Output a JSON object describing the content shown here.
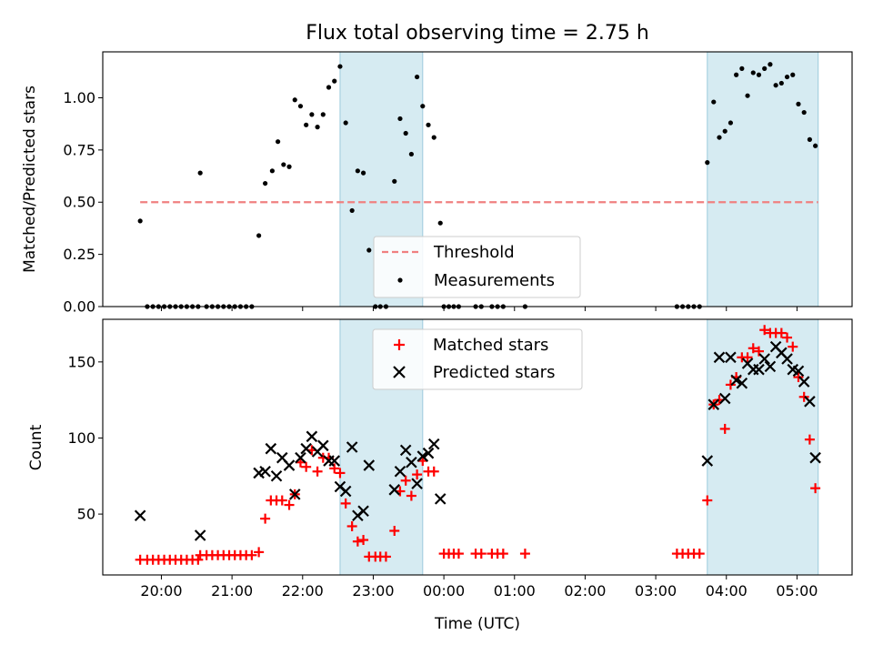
{
  "chart_data": [
    {
      "type": "scatter",
      "title": "Flux total observing time = 2.75 h",
      "xlabel": "",
      "ylabel": "Matched/Predicted stars",
      "x_unit": "hours since 00:00 UTC",
      "xlim": [
        -4.83,
        5.78
      ],
      "ylim": [
        0.0,
        1.22
      ],
      "yticks": [
        0.0,
        0.25,
        0.5,
        0.75,
        1.0
      ],
      "ytick_labels": [
        "0.00",
        "0.25",
        "0.50",
        "0.75",
        "1.00"
      ],
      "shaded_intervals": [
        [
          -1.47,
          -0.3
        ],
        [
          3.73,
          5.3
        ]
      ],
      "legend": {
        "placement": "bottom-center",
        "entries": [
          "Threshold",
          "Measurements"
        ]
      },
      "series": [
        {
          "name": "Threshold",
          "kind": "dashed-line",
          "color": "#f08080",
          "x": [
            -4.3,
            5.3
          ],
          "y": [
            0.5,
            0.5
          ]
        },
        {
          "name": "Measurements",
          "kind": "points",
          "color": "#000000",
          "points": [
            [
              -4.3,
              0.41
            ],
            [
              -4.2,
              0.0
            ],
            [
              -4.12,
              0.0
            ],
            [
              -4.04,
              0.0
            ],
            [
              -3.96,
              0.0
            ],
            [
              -3.88,
              0.0
            ],
            [
              -3.8,
              0.0
            ],
            [
              -3.72,
              0.0
            ],
            [
              -3.64,
              0.0
            ],
            [
              -3.56,
              0.0
            ],
            [
              -3.48,
              0.0
            ],
            [
              -3.45,
              0.64
            ],
            [
              -3.36,
              0.0
            ],
            [
              -3.28,
              0.0
            ],
            [
              -3.2,
              0.0
            ],
            [
              -3.12,
              0.0
            ],
            [
              -3.04,
              0.0
            ],
            [
              -2.96,
              0.0
            ],
            [
              -2.88,
              0.0
            ],
            [
              -2.8,
              0.0
            ],
            [
              -2.72,
              0.0
            ],
            [
              -2.62,
              0.34
            ],
            [
              -2.53,
              0.59
            ],
            [
              -2.43,
              0.65
            ],
            [
              -2.35,
              0.79
            ],
            [
              -2.27,
              0.68
            ],
            [
              -2.19,
              0.67
            ],
            [
              -2.11,
              0.99
            ],
            [
              -2.03,
              0.96
            ],
            [
              -1.95,
              0.87
            ],
            [
              -1.87,
              0.92
            ],
            [
              -1.79,
              0.86
            ],
            [
              -1.71,
              0.92
            ],
            [
              -1.63,
              1.05
            ],
            [
              -1.55,
              1.08
            ],
            [
              -1.47,
              1.15
            ],
            [
              -1.39,
              0.88
            ],
            [
              -1.3,
              0.46
            ],
            [
              -1.22,
              0.65
            ],
            [
              -1.14,
              0.64
            ],
            [
              -1.06,
              0.27
            ],
            [
              -0.97,
              0.0
            ],
            [
              -0.9,
              0.0
            ],
            [
              -0.82,
              0.0
            ],
            [
              -0.7,
              0.6
            ],
            [
              -0.62,
              0.9
            ],
            [
              -0.54,
              0.83
            ],
            [
              -0.46,
              0.73
            ],
            [
              -0.38,
              1.1
            ],
            [
              -0.3,
              0.96
            ],
            [
              -0.22,
              0.87
            ],
            [
              -0.14,
              0.81
            ],
            [
              -0.05,
              0.4
            ],
            [
              0.0,
              0.0
            ],
            [
              0.07,
              0.0
            ],
            [
              0.14,
              0.0
            ],
            [
              0.21,
              0.0
            ],
            [
              0.45,
              0.0
            ],
            [
              0.53,
              0.0
            ],
            [
              0.68,
              0.0
            ],
            [
              0.76,
              0.0
            ],
            [
              0.84,
              0.0
            ],
            [
              1.15,
              0.0
            ],
            [
              3.3,
              0.0
            ],
            [
              3.38,
              0.0
            ],
            [
              3.46,
              0.0
            ],
            [
              3.54,
              0.0
            ],
            [
              3.62,
              0.0
            ],
            [
              3.73,
              0.69
            ],
            [
              3.82,
              0.98
            ],
            [
              3.9,
              0.81
            ],
            [
              3.98,
              0.84
            ],
            [
              4.06,
              0.88
            ],
            [
              4.14,
              1.11
            ],
            [
              4.22,
              1.14
            ],
            [
              4.3,
              1.01
            ],
            [
              4.38,
              1.12
            ],
            [
              4.46,
              1.11
            ],
            [
              4.54,
              1.14
            ],
            [
              4.62,
              1.16
            ],
            [
              4.7,
              1.06
            ],
            [
              4.78,
              1.07
            ],
            [
              4.86,
              1.1
            ],
            [
              4.94,
              1.11
            ],
            [
              5.02,
              0.97
            ],
            [
              5.1,
              0.93
            ],
            [
              5.18,
              0.8
            ],
            [
              5.26,
              0.77
            ]
          ]
        }
      ]
    },
    {
      "type": "scatter",
      "title": "",
      "xlabel": "Time (UTC)",
      "ylabel": "Count",
      "x_unit": "hours since 00:00 UTC",
      "xlim": [
        -4.83,
        5.78
      ],
      "ylim": [
        10,
        178
      ],
      "yticks": [
        50,
        100,
        150
      ],
      "ytick_labels": [
        "50",
        "100",
        "150"
      ],
      "xticks": [
        -4,
        -3,
        -2,
        -1,
        0,
        1,
        2,
        3,
        4,
        5
      ],
      "xtick_labels": [
        "20:00",
        "21:00",
        "22:00",
        "23:00",
        "00:00",
        "01:00",
        "02:00",
        "03:00",
        "04:00",
        "05:00"
      ],
      "shaded_intervals": [
        [
          -1.47,
          -0.3
        ],
        [
          3.73,
          5.3
        ]
      ],
      "legend": {
        "placement": "top-center",
        "entries": [
          "Matched stars",
          "Predicted stars"
        ]
      },
      "series": [
        {
          "name": "Matched stars",
          "kind": "plus",
          "color": "#ff0000",
          "points": [
            [
              -4.3,
              20
            ],
            [
              -4.2,
              20
            ],
            [
              -4.12,
              20
            ],
            [
              -4.04,
              20
            ],
            [
              -3.96,
              20
            ],
            [
              -3.88,
              20
            ],
            [
              -3.8,
              20
            ],
            [
              -3.72,
              20
            ],
            [
              -3.64,
              20
            ],
            [
              -3.56,
              20
            ],
            [
              -3.48,
              20
            ],
            [
              -3.45,
              23
            ],
            [
              -3.36,
              23
            ],
            [
              -3.28,
              23
            ],
            [
              -3.2,
              23
            ],
            [
              -3.12,
              23
            ],
            [
              -3.04,
              23
            ],
            [
              -2.96,
              23
            ],
            [
              -2.88,
              23
            ],
            [
              -2.8,
              23
            ],
            [
              -2.72,
              23
            ],
            [
              -2.62,
              25
            ],
            [
              -2.53,
              47
            ],
            [
              -2.45,
              59
            ],
            [
              -2.37,
              59
            ],
            [
              -2.29,
              59
            ],
            [
              -2.19,
              56
            ],
            [
              -2.11,
              63
            ],
            [
              -2.03,
              84
            ],
            [
              -1.95,
              81
            ],
            [
              -1.87,
              92
            ],
            [
              -1.79,
              78
            ],
            [
              -1.71,
              87
            ],
            [
              -1.63,
              87
            ],
            [
              -1.55,
              80
            ],
            [
              -1.47,
              77
            ],
            [
              -1.39,
              57
            ],
            [
              -1.3,
              42
            ],
            [
              -1.22,
              32
            ],
            [
              -1.14,
              33
            ],
            [
              -1.06,
              22
            ],
            [
              -0.97,
              22
            ],
            [
              -0.9,
              22
            ],
            [
              -0.82,
              22
            ],
            [
              -0.7,
              39
            ],
            [
              -0.62,
              65
            ],
            [
              -0.54,
              72
            ],
            [
              -0.46,
              62
            ],
            [
              -0.38,
              76
            ],
            [
              -0.3,
              85
            ],
            [
              -0.22,
              78
            ],
            [
              -0.14,
              78
            ],
            [
              0.0,
              24
            ],
            [
              0.07,
              24
            ],
            [
              0.14,
              24
            ],
            [
              0.21,
              24
            ],
            [
              0.45,
              24
            ],
            [
              0.53,
              24
            ],
            [
              0.68,
              24
            ],
            [
              0.76,
              24
            ],
            [
              0.84,
              24
            ],
            [
              1.15,
              24
            ],
            [
              3.3,
              24
            ],
            [
              3.38,
              24
            ],
            [
              3.46,
              24
            ],
            [
              3.54,
              24
            ],
            [
              3.62,
              24
            ],
            [
              3.73,
              59
            ],
            [
              3.82,
              122
            ],
            [
              3.9,
              125
            ],
            [
              3.98,
              106
            ],
            [
              4.06,
              135
            ],
            [
              4.14,
              140
            ],
            [
              4.22,
              153
            ],
            [
              4.3,
              153
            ],
            [
              4.38,
              159
            ],
            [
              4.46,
              157
            ],
            [
              4.54,
              171
            ],
            [
              4.62,
              169
            ],
            [
              4.7,
              169
            ],
            [
              4.78,
              169
            ],
            [
              4.86,
              166
            ],
            [
              4.94,
              160
            ],
            [
              5.02,
              140
            ],
            [
              5.1,
              127
            ],
            [
              5.18,
              99
            ],
            [
              5.26,
              67
            ]
          ]
        },
        {
          "name": "Predicted stars",
          "kind": "x",
          "color": "#000000",
          "points": [
            [
              -4.3,
              49
            ],
            [
              -3.45,
              36
            ],
            [
              -2.62,
              77
            ],
            [
              -2.53,
              78
            ],
            [
              -2.45,
              93
            ],
            [
              -2.37,
              75
            ],
            [
              -2.29,
              87
            ],
            [
              -2.19,
              82
            ],
            [
              -2.11,
              63
            ],
            [
              -2.03,
              87
            ],
            [
              -1.95,
              93
            ],
            [
              -1.87,
              101
            ],
            [
              -1.79,
              91
            ],
            [
              -1.71,
              95
            ],
            [
              -1.63,
              85
            ],
            [
              -1.55,
              85
            ],
            [
              -1.47,
              68
            ],
            [
              -1.39,
              65
            ],
            [
              -1.3,
              94
            ],
            [
              -1.22,
              49
            ],
            [
              -1.14,
              52
            ],
            [
              -1.06,
              82
            ],
            [
              -0.7,
              66
            ],
            [
              -0.62,
              78
            ],
            [
              -0.54,
              92
            ],
            [
              -0.46,
              84
            ],
            [
              -0.38,
              70
            ],
            [
              -0.3,
              88
            ],
            [
              -0.22,
              90
            ],
            [
              -0.14,
              96
            ],
            [
              -0.05,
              60
            ],
            [
              3.73,
              85
            ],
            [
              3.82,
              122
            ],
            [
              3.9,
              153
            ],
            [
              3.98,
              126
            ],
            [
              4.06,
              153
            ],
            [
              4.14,
              138
            ],
            [
              4.22,
              136
            ],
            [
              4.3,
              149
            ],
            [
              4.38,
              145
            ],
            [
              4.46,
              145
            ],
            [
              4.54,
              152
            ],
            [
              4.62,
              147
            ],
            [
              4.7,
              160
            ],
            [
              4.78,
              156
            ],
            [
              4.86,
              152
            ],
            [
              4.94,
              145
            ],
            [
              5.02,
              144
            ],
            [
              5.1,
              137
            ],
            [
              5.18,
              124
            ],
            [
              5.26,
              87
            ]
          ]
        }
      ]
    }
  ]
}
